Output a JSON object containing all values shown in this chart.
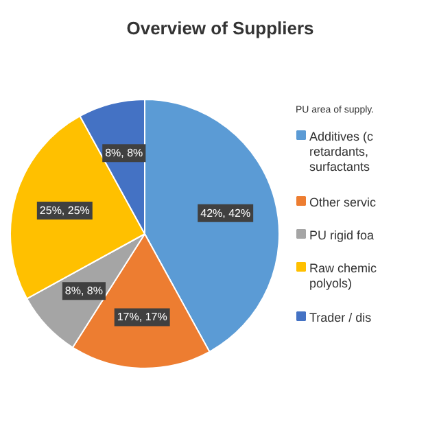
{
  "chart_data": {
    "type": "pie",
    "title": "Overview of Suppliers",
    "legend_title": "PU area of supply.",
    "categories": [
      "Additives (c\nretardants,\nsurfactants",
      "Other servic",
      "PU rigid foa",
      "Raw chemic\npolyols)",
      "Trader / dis"
    ],
    "values": [
      42,
      17,
      8,
      25,
      8
    ],
    "colors": [
      "#5b9bd5",
      "#ed7d31",
      "#a5a5a5",
      "#ffc000",
      "#4472c4"
    ],
    "value_labels": [
      "42%, 42%",
      "17%, 17%",
      "8%, 8%",
      "25%, 25%",
      "8%, 8%"
    ],
    "legend": "right"
  }
}
